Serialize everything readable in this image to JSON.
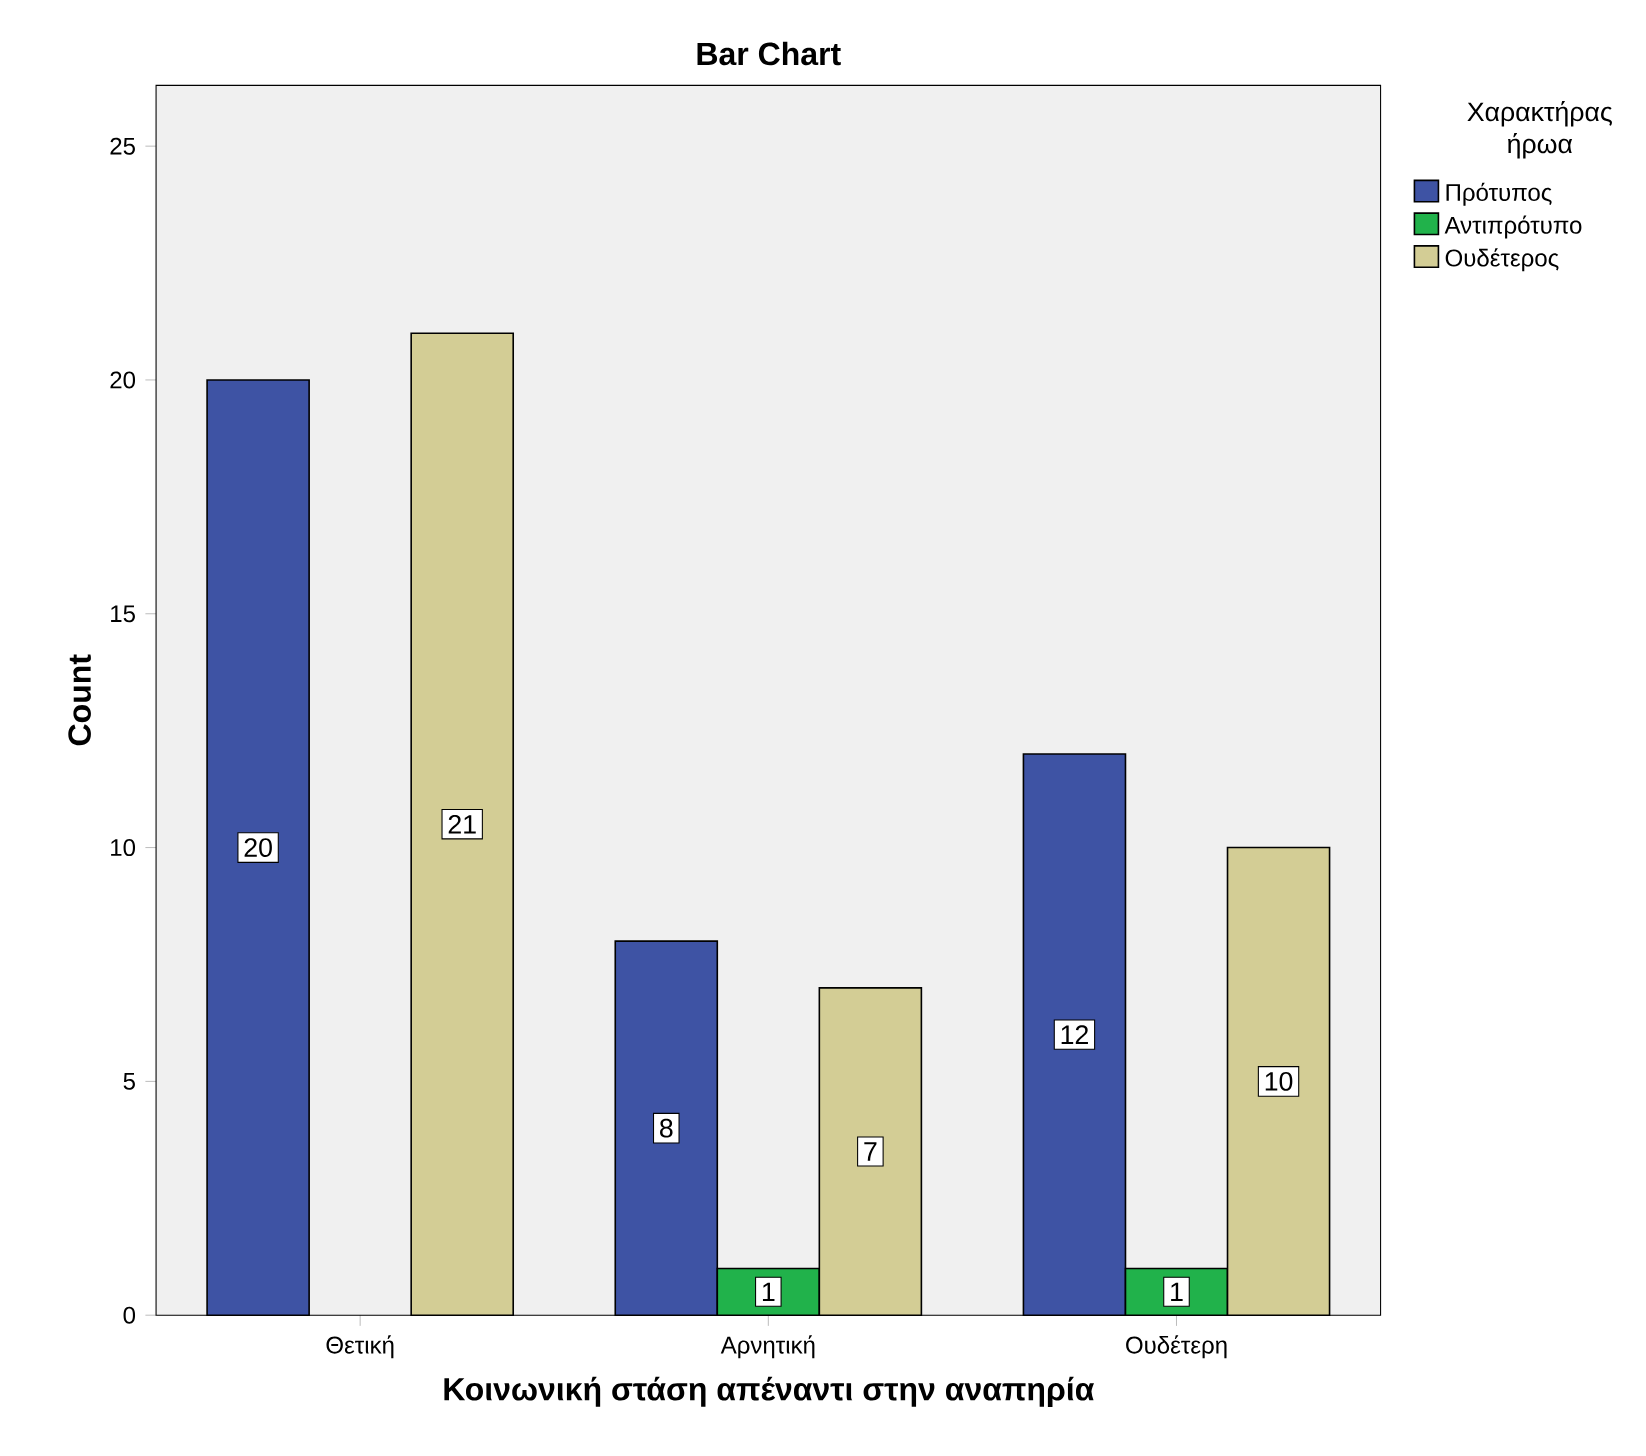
{
  "chart_data": {
    "type": "bar",
    "title": "Bar Chart",
    "xlabel": "Κοινωνική στάση απέναντι στην αναπηρία",
    "ylabel": "Count",
    "legend_title": "Χαρακτήρας ήρωα",
    "categories": [
      "Θετική",
      "Αρνητική",
      "Ουδέτερη"
    ],
    "series": [
      {
        "name": "Πρότυπος",
        "color": "#3e53a4",
        "values": [
          20,
          8,
          12
        ]
      },
      {
        "name": "Αντιπρότυπο",
        "color": "#21b24b",
        "values": [
          null,
          1,
          1
        ]
      },
      {
        "name": "Ουδέτερος",
        "color": "#d3cd95",
        "values": [
          21,
          7,
          10
        ]
      }
    ],
    "ylim": [
      0,
      26.3
    ],
    "yticks": [
      0,
      5,
      10,
      15,
      20,
      25
    ],
    "grid": false,
    "legend": "top right",
    "data_labels": true
  }
}
